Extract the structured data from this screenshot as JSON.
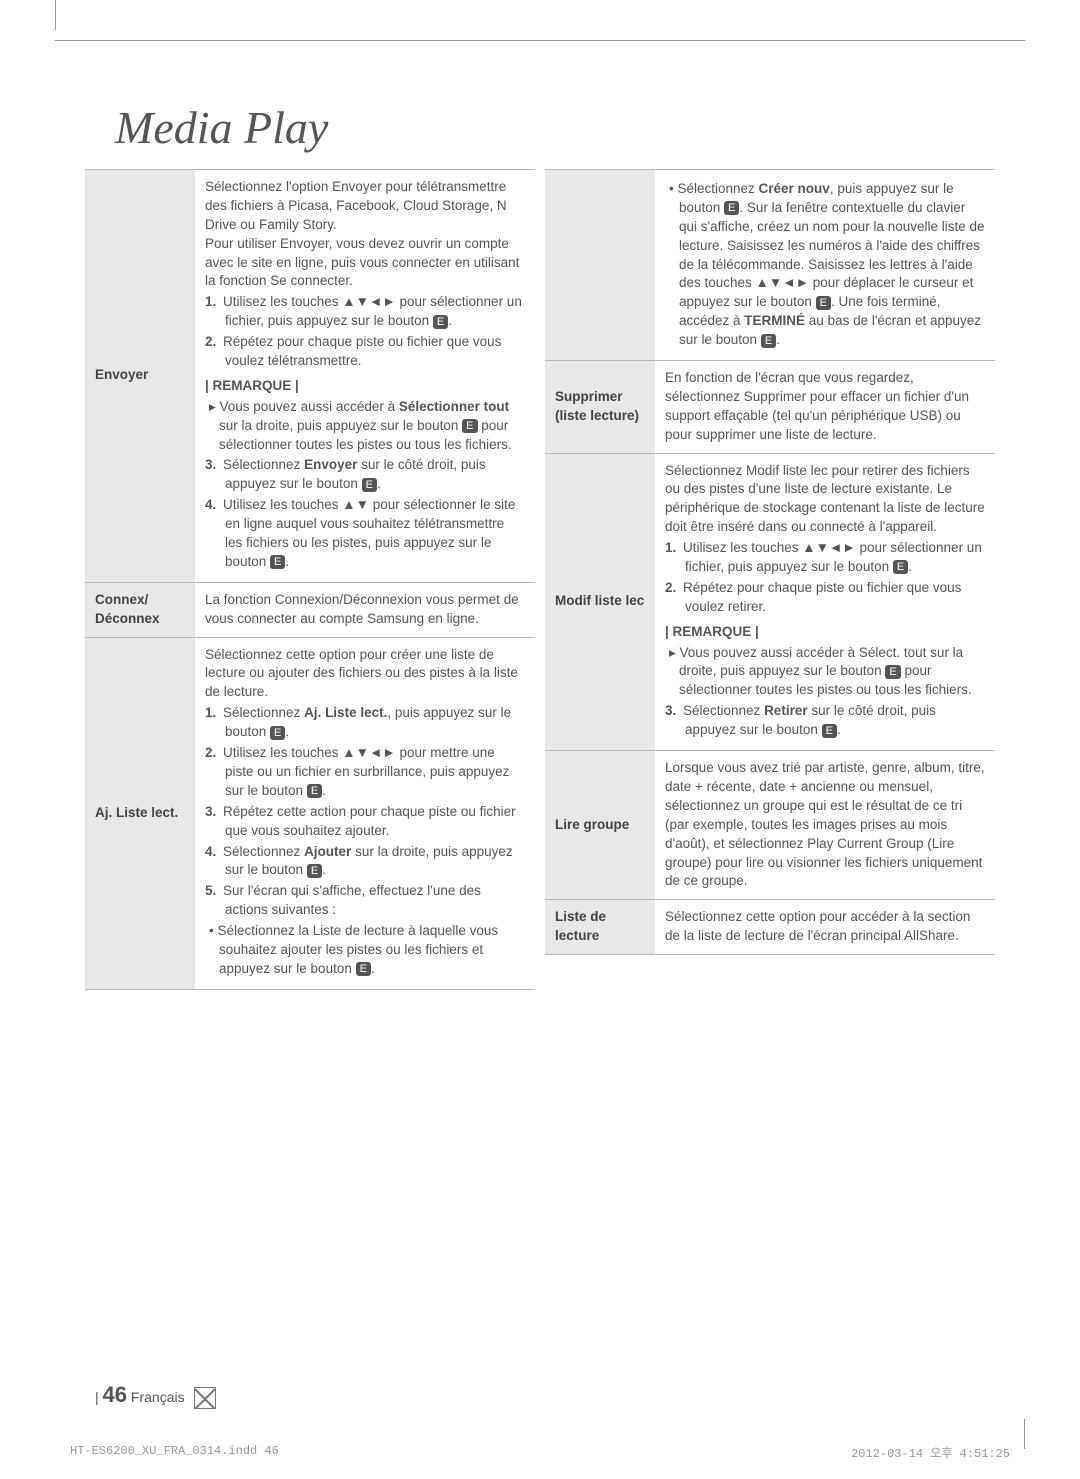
{
  "title": "Media Play",
  "left_table": [
    {
      "label": "Envoyer",
      "content": {
        "intro": "Sélectionnez l'option Envoyer pour télétransmettre des fichiers à Picasa, Facebook, Cloud Storage, N Drive ou Family Story.\nPour utiliser Envoyer, vous devez ouvrir un compte avec le site en ligne, puis vous connecter en utilisant la fonction Se connecter.",
        "steps_a": [
          "Utilisez les touches ▲▼◄► pour sélectionner un fichier, puis appuyez sur le bouton",
          "Répétez pour chaque piste ou fichier que vous voulez télétransmettre."
        ],
        "remark_label": "| REMARQUE |",
        "remark_items": [
          "Vous pouvez aussi accéder à Sélectionner tout sur la droite, puis appuyez sur le bouton E pour sélectionner toutes les pistes ou tous les fichiers."
        ],
        "remark_bold": "Sélectionner tout",
        "steps_b": [
          "Sélectionnez Envoyer sur le côté droit, puis appuyez sur le bouton",
          "Utilisez les touches ▲▼ pour sélectionner le site en ligne auquel vous souhaitez télétransmettre les fichiers ou les pistes, puis appuyez sur le bouton"
        ],
        "step_b_bold": "Envoyer"
      }
    },
    {
      "label": "Connex/\nDéconnex",
      "content": {
        "text": "La fonction Connexion/Déconnexion vous permet de vous connecter au compte Samsung en ligne."
      }
    },
    {
      "label": "Aj. Liste lect.",
      "content": {
        "intro": "Sélectionnez cette option pour créer une liste de lecture ou ajouter des fichiers ou des pistes à la liste de lecture.",
        "steps": [
          {
            "n": "1.",
            "t": "Sélectionnez Aj. Liste lect., puis appuyez sur le bouton",
            "bold": "Aj. Liste lect."
          },
          {
            "n": "2.",
            "t": "Utilisez les touches ▲▼◄► pour mettre une piste ou un fichier en surbrillance, puis appuyez sur le bouton"
          },
          {
            "n": "3.",
            "t": "Répétez cette action pour chaque piste ou fichier que vous souhaitez ajouter."
          },
          {
            "n": "4.",
            "t": "Sélectionnez Ajouter sur la droite, puis appuyez sur le bouton",
            "bold": "Ajouter"
          },
          {
            "n": "5.",
            "t": "Sur l'écran qui s'affiche, effectuez l'une des actions suivantes :"
          }
        ],
        "bullet": "Sélectionnez la Liste de lecture à laquelle vous souhaitez ajouter les pistes ou les fichiers et appuyez sur le bouton"
      }
    }
  ],
  "right_table": [
    {
      "label": "",
      "content": {
        "bullet": "Sélectionnez Créer nouv, puis appuyez sur le bouton E. Sur la fenêtre contextuelle du clavier qui s'affiche, créez un nom pour la nouvelle liste de lecture. Saisissez les numéros à l'aide des chiffres de la télécommande.  Saisissez les lettres à l'aide des touches ▲▼◄► pour déplacer le curseur et appuyez sur le bouton E. Une fois terminé, accédez à TERMINÉ au bas de l'écran et appuyez sur le bouton",
        "bold1": "Créer nouv",
        "bold2": "TERMINÉ"
      }
    },
    {
      "label": "Supprimer\n(liste lecture)",
      "content": {
        "text": "En fonction de l'écran que vous regardez, sélectionnez Supprimer pour effacer un fichier d'un support effaçable (tel qu'un périphérique USB) ou pour supprimer une liste de lecture."
      }
    },
    {
      "label": "Modif liste lec",
      "content": {
        "intro": "Sélectionnez Modif liste lec pour retirer des fichiers ou des pistes d'une liste de lecture existante. Le périphérique de stockage contenant la liste de lecture doit être inséré dans ou connecté à l'appareil.",
        "steps": [
          {
            "n": "1.",
            "t": "Utilisez les touches ▲▼◄► pour sélectionner un fichier, puis appuyez sur le bouton"
          },
          {
            "n": "2.",
            "t": "Répétez pour chaque piste ou fichier que vous voulez retirer."
          }
        ],
        "remark_label": "| REMARQUE |",
        "remark_item": "Vous pouvez aussi accéder à Sélect. tout sur la droite, puis appuyez sur le bouton E pour sélectionner toutes les pistes ou tous les fichiers.",
        "step3": {
          "n": "3.",
          "t": "Sélectionnez Retirer sur le côté droit, puis appuyez sur le bouton",
          "bold": "Retirer"
        }
      }
    },
    {
      "label": "Lire groupe",
      "content": {
        "text": "Lorsque vous avez trié par artiste, genre, album, titre, date + récente, date + ancienne ou mensuel, sélectionnez un groupe qui est le résultat de ce tri (par exemple, toutes les images prises au mois d'août), et sélectionnez Play Current Group (Lire groupe) pour lire ou visionner les fichiers uniquement de ce groupe."
      }
    },
    {
      "label": "Liste de lecture",
      "content": {
        "text": "Sélectionnez cette option pour accéder à la section de la liste de lecture de l'écran principal AllShare."
      }
    }
  ],
  "footer": {
    "page": "46",
    "lang": "Français"
  },
  "indd": {
    "left": "HT-ES6200_XU_FRA_0314.indd   46",
    "right": "2012-03-14   오후 4:51:25"
  }
}
